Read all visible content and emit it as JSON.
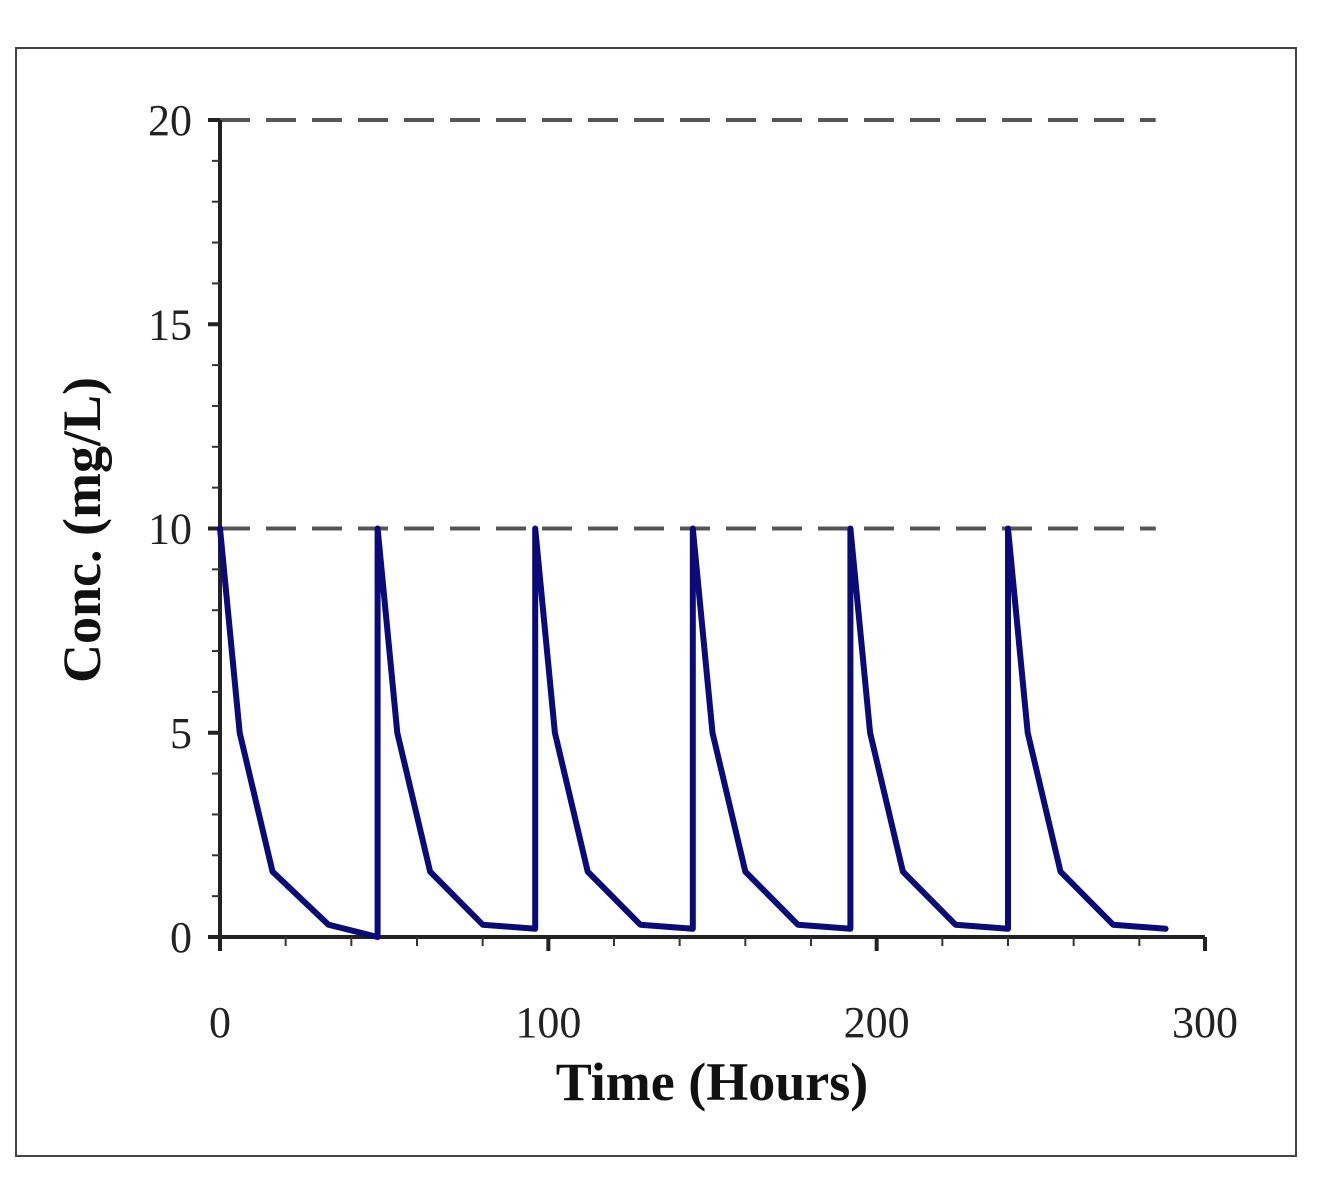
{
  "chart_data": {
    "type": "line",
    "title": "",
    "xlabel": "Time (Hours)",
    "ylabel": "Conc. (mg/L)",
    "xlim": [
      0,
      300
    ],
    "ylim": [
      0,
      20
    ],
    "xticks": [
      0,
      100,
      200,
      300
    ],
    "xtick_labels": [
      "0",
      "100",
      "200",
      "300"
    ],
    "yticks": [
      0,
      5,
      10,
      15,
      20
    ],
    "ytick_labels": [
      "0",
      "5",
      "10",
      "15",
      "20"
    ],
    "grid": false,
    "legend": "none",
    "reference_lines": [
      {
        "name": "upper-limit",
        "y": 20,
        "x_range": [
          0,
          285
        ],
        "style": "dashed"
      },
      {
        "name": "peak-level",
        "y": 10,
        "x_range": [
          0,
          285
        ],
        "style": "dashed"
      }
    ],
    "series": [
      {
        "name": "concentration",
        "color": "#0a0a78",
        "x": [
          0,
          6,
          16,
          33,
          48,
          48,
          54,
          64,
          80,
          96,
          96,
          102,
          112,
          128,
          144,
          144,
          150,
          160,
          176,
          192,
          192,
          198,
          208,
          224,
          240,
          240,
          246,
          256,
          272,
          288
        ],
        "y": [
          10,
          5,
          1.6,
          0.3,
          0,
          10,
          5,
          1.6,
          0.3,
          0.2,
          10,
          5,
          1.6,
          0.3,
          0.2,
          10,
          5,
          1.6,
          0.3,
          0.2,
          10,
          5,
          1.6,
          0.3,
          0.2,
          10,
          5,
          1.6,
          0.3,
          0.2
        ]
      }
    ]
  }
}
